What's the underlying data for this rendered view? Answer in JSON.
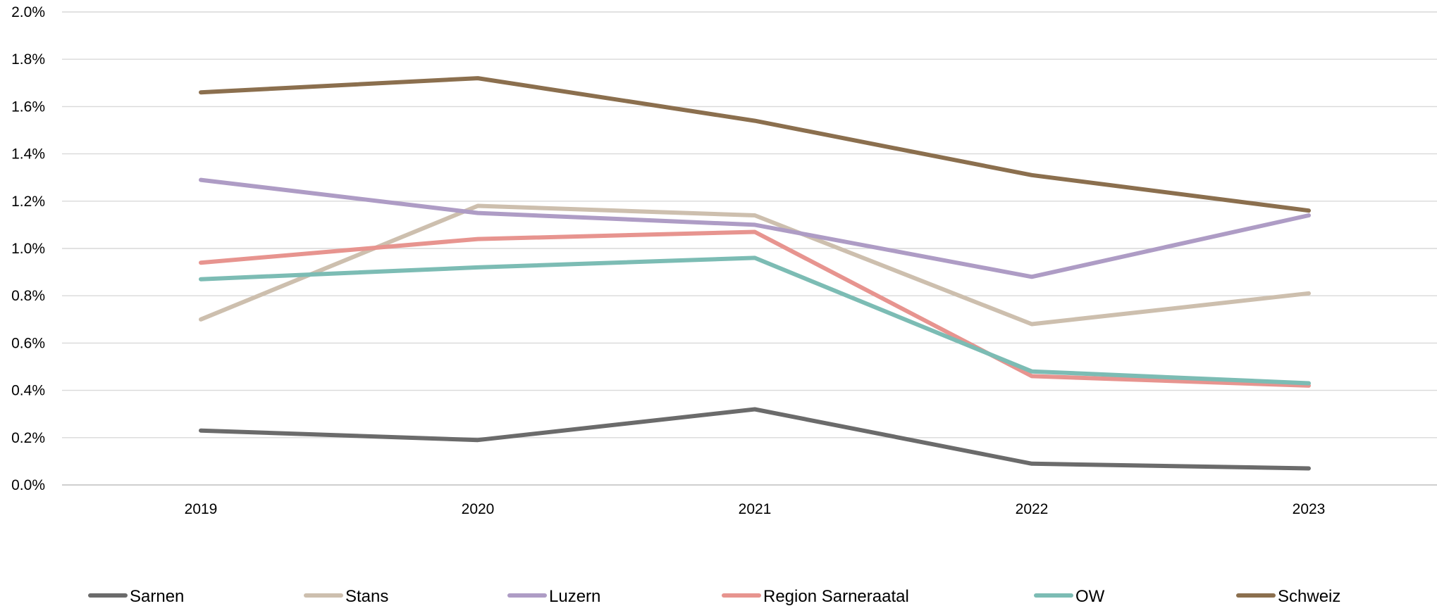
{
  "chart_data": {
    "type": "line",
    "title": "",
    "xlabel": "",
    "ylabel": "",
    "x": [
      "2019",
      "2020",
      "2021",
      "2022",
      "2023"
    ],
    "ylim": [
      0,
      2.0
    ],
    "yticks": [
      "0.0%",
      "0.2%",
      "0.4%",
      "0.6%",
      "0.8%",
      "1.0%",
      "1.2%",
      "1.4%",
      "1.6%",
      "1.8%",
      "2.0%"
    ],
    "grid": "horizontal",
    "legend_position": "bottom",
    "series": [
      {
        "name": "Sarnen",
        "color": "#6b6b6b",
        "values": [
          0.23,
          0.19,
          0.32,
          0.09,
          0.07
        ]
      },
      {
        "name": "Stans",
        "color": "#cdbfae",
        "values": [
          0.7,
          1.18,
          1.14,
          0.68,
          0.81
        ]
      },
      {
        "name": "Luzern",
        "color": "#ae9cc5",
        "values": [
          1.29,
          1.15,
          1.1,
          0.88,
          1.14
        ]
      },
      {
        "name": "Region Sarneraatal",
        "color": "#e7948f",
        "values": [
          0.94,
          1.04,
          1.07,
          0.46,
          0.42
        ]
      },
      {
        "name": "OW",
        "color": "#7cbcb4",
        "values": [
          0.87,
          0.92,
          0.96,
          0.48,
          0.43
        ]
      },
      {
        "name": "Schweiz",
        "color": "#8b6f4e",
        "values": [
          1.66,
          1.72,
          1.54,
          1.31,
          1.16
        ]
      }
    ]
  }
}
